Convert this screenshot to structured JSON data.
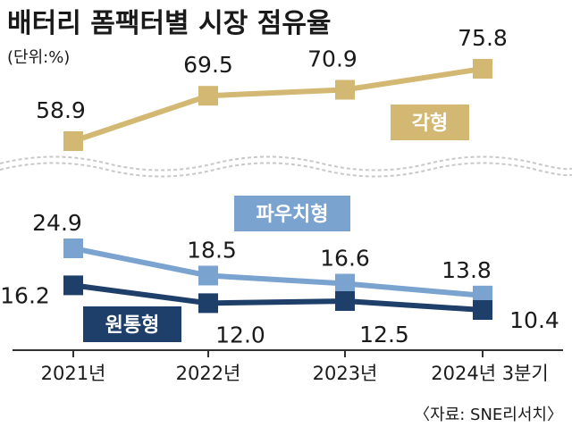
{
  "chart_data": {
    "type": "line",
    "title": "배터리 폼팩터별 시장 점유율",
    "unit": "(단위:%)",
    "categories": [
      "2021년",
      "2022년",
      "2023년",
      "2024년 3분기"
    ],
    "series": [
      {
        "name": "각형",
        "values": [
          58.9,
          69.5,
          70.9,
          75.8
        ],
        "color": "#d2b873"
      },
      {
        "name": "파우치형",
        "values": [
          24.9,
          18.5,
          16.6,
          13.8
        ],
        "color": "#7ba3cf"
      },
      {
        "name": "원통형",
        "values": [
          16.2,
          12.0,
          12.5,
          10.4
        ],
        "color": "#1f3f6b"
      }
    ],
    "value_labels": {
      "각형": [
        "58.9",
        "69.5",
        "70.9",
        "75.8"
      ],
      "파우치형": [
        "24.9",
        "18.5",
        "16.6",
        "13.8"
      ],
      "원통형": [
        "16.2",
        "12.0",
        "12.5",
        "10.4"
      ]
    },
    "axis_break": true,
    "source": "〈자료: SNE리서치〉"
  }
}
